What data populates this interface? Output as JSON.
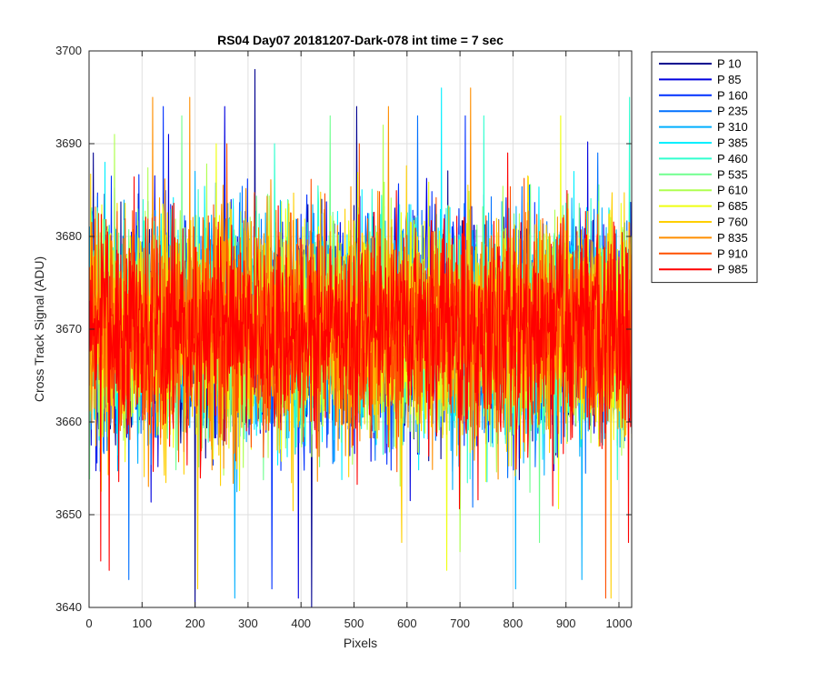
{
  "chart_data": {
    "type": "line",
    "title": "RS04 Day07 20181207-Dark-078 int time = 7 sec",
    "xlabel": "Pixels",
    "ylabel": "Cross Track Signal (ADU)",
    "xlim": [
      0,
      1024
    ],
    "ylim": [
      3640,
      3700
    ],
    "xticks": [
      0,
      100,
      200,
      300,
      400,
      500,
      600,
      700,
      800,
      900,
      1000
    ],
    "yticks": [
      3640,
      3650,
      3660,
      3670,
      3680,
      3690,
      3700
    ],
    "grid": true,
    "legend_position": "outside top-right",
    "x_start": 1,
    "x_end": 1024,
    "noise_summary": "dense per-pixel noise; approximate envelope, center about 3670, most values between 3652 and 3688",
    "series": [
      {
        "name": "P 10",
        "color": "#00008F",
        "center": 3670,
        "spikes": [
          [
            313,
            3698
          ],
          [
            505,
            3694
          ],
          [
            8,
            3689
          ],
          [
            420,
            3640
          ],
          [
            200,
            3640
          ]
        ]
      },
      {
        "name": "P 85",
        "color": "#0000DF",
        "center": 3670,
        "spikes": [
          [
            256,
            3694
          ],
          [
            395,
            3641
          ],
          [
            150,
            3691
          ]
        ]
      },
      {
        "name": "P 160",
        "color": "#0030FF",
        "center": 3670,
        "spikes": [
          [
            140,
            3694
          ],
          [
            345,
            3642
          ],
          [
            710,
            3693
          ]
        ]
      },
      {
        "name": "P 235",
        "color": "#0070FF",
        "center": 3670,
        "spikes": [
          [
            620,
            3693
          ],
          [
            75,
            3643
          ],
          [
            960,
            3689
          ]
        ]
      },
      {
        "name": "P 310",
        "color": "#00AFFF",
        "center": 3670,
        "spikes": [
          [
            275,
            3641
          ],
          [
            805,
            3642
          ],
          [
            930,
            3643
          ]
        ]
      },
      {
        "name": "P 385",
        "color": "#00EFFF",
        "center": 3670,
        "spikes": [
          [
            665,
            3696
          ],
          [
            915,
            3687
          ],
          [
            30,
            3688
          ]
        ]
      },
      {
        "name": "P 460",
        "color": "#30FFCF",
        "center": 3670,
        "spikes": [
          [
            745,
            3693
          ],
          [
            1020,
            3695
          ],
          [
            350,
            3690
          ]
        ]
      },
      {
        "name": "P 535",
        "color": "#70FF8F",
        "center": 3670,
        "spikes": [
          [
            455,
            3693
          ],
          [
            850,
            3647
          ],
          [
            175,
            3693
          ]
        ]
      },
      {
        "name": "P 610",
        "color": "#AFFF50",
        "center": 3670,
        "spikes": [
          [
            48,
            3691
          ],
          [
            700,
            3646
          ],
          [
            555,
            3692
          ]
        ]
      },
      {
        "name": "P 685",
        "color": "#EFFF10",
        "center": 3670,
        "spikes": [
          [
            675,
            3644
          ],
          [
            890,
            3693
          ],
          [
            240,
            3690
          ]
        ]
      },
      {
        "name": "P 760",
        "color": "#FFCF00",
        "center": 3670,
        "spikes": [
          [
            205,
            3642
          ],
          [
            590,
            3647
          ],
          [
            985,
            3641
          ]
        ]
      },
      {
        "name": "P 835",
        "color": "#FF8F00",
        "center": 3670,
        "spikes": [
          [
            120,
            3695
          ],
          [
            190,
            3695
          ],
          [
            720,
            3696
          ],
          [
            565,
            3694
          ]
        ]
      },
      {
        "name": "P 910",
        "color": "#FF5000",
        "center": 3670,
        "spikes": [
          [
            975,
            3641
          ],
          [
            510,
            3690
          ],
          [
            260,
            3690
          ]
        ]
      },
      {
        "name": "P 985",
        "color": "#FF0000",
        "center": 3670,
        "spikes": [
          [
            22,
            3645
          ],
          [
            38,
            3644
          ],
          [
            1018,
            3647
          ],
          [
            790,
            3689
          ]
        ]
      }
    ]
  }
}
